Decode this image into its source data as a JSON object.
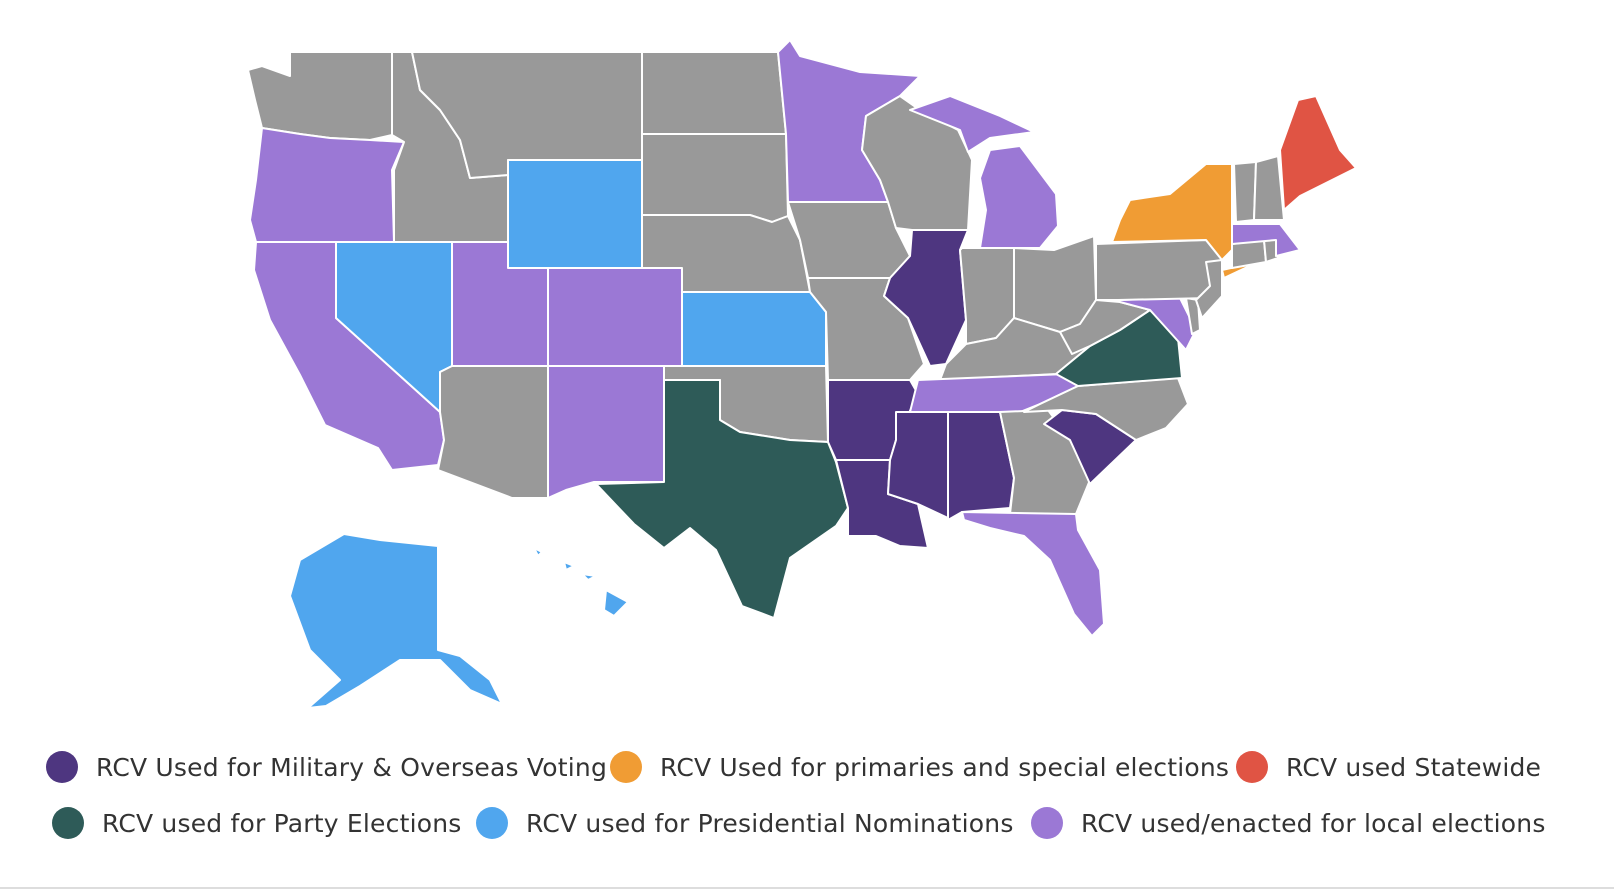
{
  "map": {
    "colors": {
      "none": "#999999",
      "military_overseas": "#4e3680",
      "primaries_special": "#f09c34",
      "statewide": "#e05444",
      "party_elections": "#2e5b58",
      "presidential_nominations": "#50a6ee",
      "local_elections": "#9b78d5"
    },
    "states": [
      {
        "name": "Washington",
        "category": "none"
      },
      {
        "name": "Oregon",
        "category": "local_elections"
      },
      {
        "name": "California",
        "category": "local_elections"
      },
      {
        "name": "Nevada",
        "category": "presidential_nominations"
      },
      {
        "name": "Idaho",
        "category": "none"
      },
      {
        "name": "Montana",
        "category": "none"
      },
      {
        "name": "Wyoming",
        "category": "presidential_nominations"
      },
      {
        "name": "Utah",
        "category": "local_elections"
      },
      {
        "name": "Colorado",
        "category": "local_elections"
      },
      {
        "name": "Arizona",
        "category": "none"
      },
      {
        "name": "New Mexico",
        "category": "local_elections"
      },
      {
        "name": "North Dakota",
        "category": "none"
      },
      {
        "name": "South Dakota",
        "category": "none"
      },
      {
        "name": "Nebraska",
        "category": "none"
      },
      {
        "name": "Kansas",
        "category": "presidential_nominations"
      },
      {
        "name": "Oklahoma",
        "category": "none"
      },
      {
        "name": "Texas",
        "category": "party_elections"
      },
      {
        "name": "Minnesota",
        "category": "local_elections"
      },
      {
        "name": "Iowa",
        "category": "none"
      },
      {
        "name": "Missouri",
        "category": "none"
      },
      {
        "name": "Arkansas",
        "category": "military_overseas"
      },
      {
        "name": "Louisiana",
        "category": "military_overseas"
      },
      {
        "name": "Wisconsin",
        "category": "none"
      },
      {
        "name": "Illinois",
        "category": "military_overseas"
      },
      {
        "name": "Michigan",
        "category": "local_elections"
      },
      {
        "name": "Indiana",
        "category": "none"
      },
      {
        "name": "Ohio",
        "category": "none"
      },
      {
        "name": "Kentucky",
        "category": "none"
      },
      {
        "name": "Tennessee",
        "category": "local_elections"
      },
      {
        "name": "Mississippi",
        "category": "military_overseas"
      },
      {
        "name": "Alabama",
        "category": "military_overseas"
      },
      {
        "name": "Georgia",
        "category": "none"
      },
      {
        "name": "Florida",
        "category": "local_elections"
      },
      {
        "name": "South Carolina",
        "category": "military_overseas"
      },
      {
        "name": "North Carolina",
        "category": "none"
      },
      {
        "name": "Virginia",
        "category": "party_elections"
      },
      {
        "name": "West Virginia",
        "category": "none"
      },
      {
        "name": "Maryland",
        "category": "local_elections"
      },
      {
        "name": "Delaware",
        "category": "none"
      },
      {
        "name": "Pennsylvania",
        "category": "none"
      },
      {
        "name": "New Jersey",
        "category": "none"
      },
      {
        "name": "New York",
        "category": "primaries_special"
      },
      {
        "name": "Connecticut",
        "category": "none"
      },
      {
        "name": "Rhode Island",
        "category": "none"
      },
      {
        "name": "Massachusetts",
        "category": "local_elections"
      },
      {
        "name": "Vermont",
        "category": "none"
      },
      {
        "name": "New Hampshire",
        "category": "none"
      },
      {
        "name": "Maine",
        "category": "statewide"
      },
      {
        "name": "Alaska",
        "category": "presidential_nominations"
      },
      {
        "name": "Hawaii",
        "category": "presidential_nominations"
      }
    ]
  },
  "legend": {
    "items": [
      {
        "label": "RCV Used for Military & Overseas Voting",
        "color": "#4e3680"
      },
      {
        "label": "RCV Used for primaries and special elections",
        "color": "#f09c34"
      },
      {
        "label": "RCV used Statewide",
        "color": "#e05444"
      },
      {
        "label": "RCV used for Party Elections",
        "color": "#2e5b58"
      },
      {
        "label": "RCV used for Presidential Nominations",
        "color": "#50a6ee"
      },
      {
        "label": "RCV used/enacted for local elections",
        "color": "#9b78d5"
      }
    ]
  }
}
